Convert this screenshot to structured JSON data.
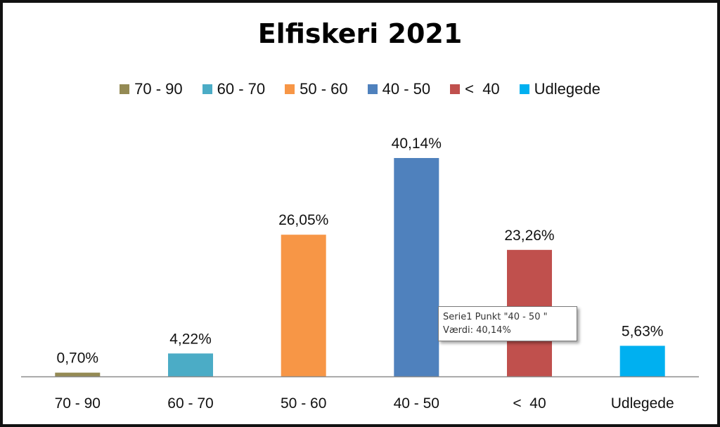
{
  "chart_data": {
    "type": "bar",
    "title": "Elfiskeri 2021",
    "categories": [
      "70 - 90",
      "60 - 70",
      "50 - 60",
      "40 - 50",
      "<  40",
      "Udlegede"
    ],
    "values": [
      0.7,
      4.22,
      26.05,
      40.14,
      23.26,
      5.63
    ],
    "data_labels": [
      "0,70%",
      "4,22%",
      "26,05%",
      "40,14%",
      "23,26%",
      "5,63%"
    ],
    "colors": [
      "#948A54",
      "#4BACC6",
      "#F79646",
      "#4F81BD",
      "#C0504D",
      "#00B0F0"
    ],
    "unit": "%",
    "ylim": [
      0,
      44
    ],
    "grid": false,
    "legend_position": "top",
    "legend": [
      "70 - 90",
      "60 - 70",
      "50 - 60",
      "40 - 50",
      "<  40",
      "Udlegede"
    ]
  },
  "tooltip": {
    "line1": "Serie1 Punkt \"40 - 50 \"",
    "line2": "Værdi: 40,14%"
  }
}
